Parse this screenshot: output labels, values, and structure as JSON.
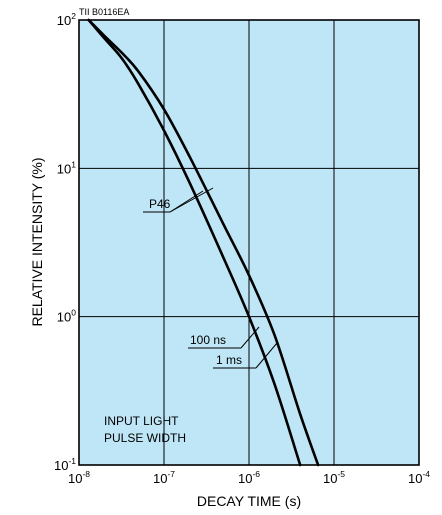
{
  "chart_data": {
    "type": "line",
    "code_label": "TII B0116EA",
    "xlabel": "DECAY TIME (s)",
    "ylabel": "RELATIVE INTENSITY (%)",
    "x_scale": "log",
    "y_scale": "log",
    "xlim": [
      1e-08,
      0.0001
    ],
    "ylim": [
      0.1,
      100
    ],
    "grid": true,
    "x_ticks": [
      {
        "base": "10",
        "exp": "-8"
      },
      {
        "base": "10",
        "exp": "-7"
      },
      {
        "base": "10",
        "exp": "-6"
      },
      {
        "base": "10",
        "exp": "-5"
      },
      {
        "base": "10",
        "exp": "-4"
      }
    ],
    "y_ticks": [
      {
        "base": "10",
        "exp": "2"
      },
      {
        "base": "10",
        "exp": "1"
      },
      {
        "base": "10",
        "exp": "0"
      },
      {
        "base": "10",
        "exp": "-1"
      }
    ],
    "series": [
      {
        "name": "100 ns",
        "x": [
          1.3e-08,
          2e-08,
          3.2e-08,
          5e-08,
          1e-07,
          2e-07,
          5e-07,
          1e-06,
          2e-06,
          4e-06
        ],
        "y": [
          100,
          75,
          55,
          37,
          18,
          8,
          2.5,
          1.0,
          0.35,
          0.1
        ]
      },
      {
        "name": "1 ms",
        "x": [
          1.3e-08,
          2e-08,
          3.2e-08,
          5e-08,
          1e-07,
          2e-07,
          5e-07,
          1e-06,
          2e-06,
          4e-06,
          6.5e-06
        ],
        "y": [
          100,
          78,
          60,
          45,
          25,
          12,
          4.2,
          1.9,
          0.75,
          0.22,
          0.1
        ]
      }
    ],
    "annotations": {
      "curve_label": "P46",
      "series_labels": [
        "100 ns",
        "1 ms"
      ],
      "note_lines": [
        "INPUT LIGHT",
        "PULSE WIDTH"
      ]
    },
    "colors": {
      "plot_background": "#bfe6f7",
      "grid": "#000000",
      "curve": "#000000"
    }
  }
}
